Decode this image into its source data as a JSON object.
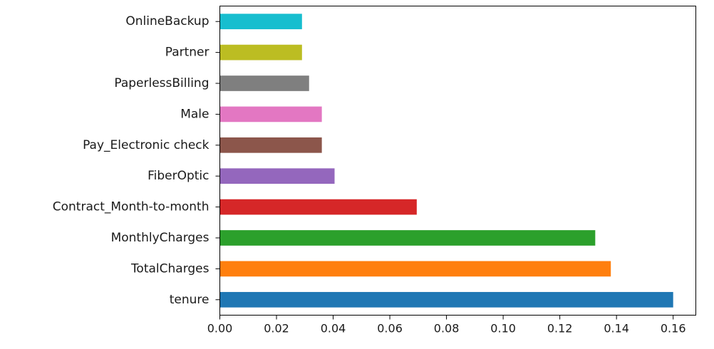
{
  "chart_data": {
    "type": "bar",
    "orientation": "horizontal",
    "title": "",
    "xlabel": "",
    "ylabel": "",
    "categories": [
      "tenure",
      "TotalCharges",
      "MonthlyCharges",
      "Contract_Month-to-month",
      "FiberOptic",
      "Pay_Electronic check",
      "Male",
      "PaperlessBilling",
      "Partner",
      "OnlineBackup"
    ],
    "values": [
      0.16,
      0.138,
      0.1325,
      0.0695,
      0.0405,
      0.036,
      0.036,
      0.0315,
      0.029,
      0.029
    ],
    "colors": [
      "#1f77b4",
      "#ff7f0e",
      "#2ca02c",
      "#d62728",
      "#9467bd",
      "#8c564b",
      "#e377c2",
      "#7f7f7f",
      "#bcbd22",
      "#17becf"
    ],
    "xlim": [
      0,
      0.168
    ],
    "xticks": [
      0.0,
      0.02,
      0.04,
      0.06,
      0.08,
      0.1,
      0.12,
      0.14,
      0.16
    ],
    "xtick_labels": [
      "0.00",
      "0.02",
      "0.04",
      "0.06",
      "0.08",
      "0.10",
      "0.12",
      "0.14",
      "0.16"
    ],
    "grid": false,
    "legend": "none"
  }
}
